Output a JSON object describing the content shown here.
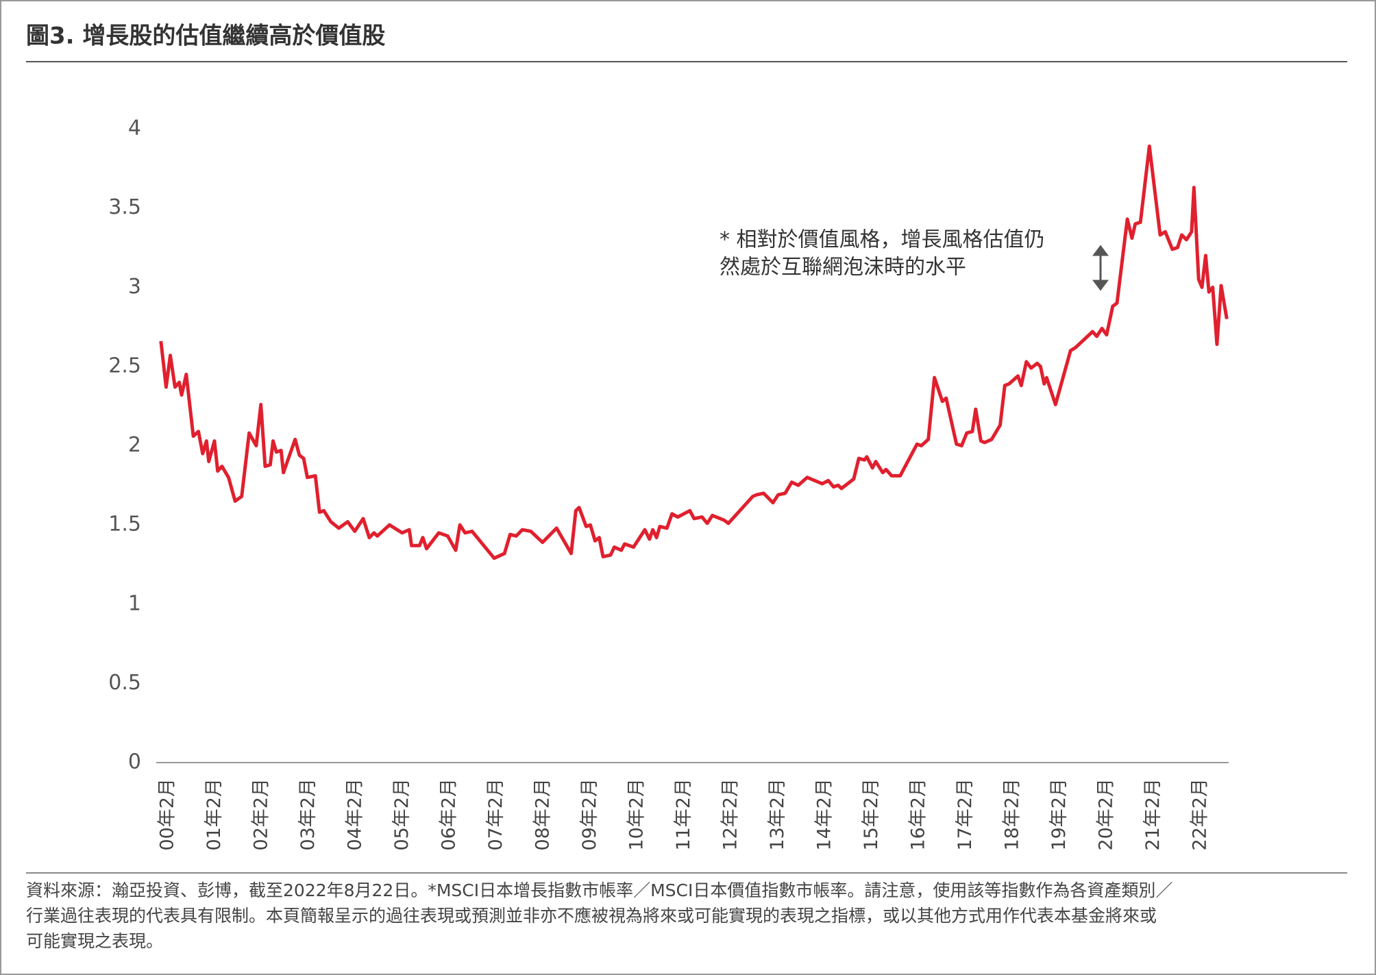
{
  "chart_data": {
    "type": "line",
    "title": "圖3. 增長股的估值繼續高於價值股",
    "annotation": [
      "* 相對於價值風格，增長風格估值仍",
      "然處於互聯網泡沫時的水平"
    ],
    "source": [
      "資料來源：瀚亞投資、彭博，截至2022年8月22日。*MSCI日本增長指數市帳率／MSCI日本價值指數市帳率。請注意，使用該等指數作為各資產類別／",
      "行業過往表現的代表具有限制。本頁簡報呈示的過往表現或預測並非亦不應被視為將來或可能實現的表現之指標，或以其他方式用作代表本基金將來或",
      "可能實現之表現。"
    ],
    "xlim": [
      1999.95,
      2022.8
    ],
    "xticks": [
      {
        "value": 2000.083,
        "label": "00年2月"
      },
      {
        "value": 2001.083,
        "label": "01年2月"
      },
      {
        "value": 2002.083,
        "label": "02年2月"
      },
      {
        "value": 2003.083,
        "label": "03年2月"
      },
      {
        "value": 2004.083,
        "label": "04年2月"
      },
      {
        "value": 2005.083,
        "label": "05年2月"
      },
      {
        "value": 2006.083,
        "label": "06年2月"
      },
      {
        "value": 2007.083,
        "label": "07年2月"
      },
      {
        "value": 2008.083,
        "label": "08年2月"
      },
      {
        "value": 2009.083,
        "label": "09年2月"
      },
      {
        "value": 2010.083,
        "label": "10年2月"
      },
      {
        "value": 2011.083,
        "label": "11年2月"
      },
      {
        "value": 2012.083,
        "label": "12年2月"
      },
      {
        "value": 2013.083,
        "label": "13年2月"
      },
      {
        "value": 2014.083,
        "label": "14年2月"
      },
      {
        "value": 2015.083,
        "label": "15年2月"
      },
      {
        "value": 2016.083,
        "label": "16年2月"
      },
      {
        "value": 2017.083,
        "label": "17年2月"
      },
      {
        "value": 2018.083,
        "label": "18年2月"
      },
      {
        "value": 2019.083,
        "label": "19年2月"
      },
      {
        "value": 2020.083,
        "label": "20年2月"
      },
      {
        "value": 2021.083,
        "label": "21年2月"
      },
      {
        "value": 2022.083,
        "label": "22年2月"
      }
    ],
    "ylim": [
      0,
      4
    ],
    "yticks": [
      0,
      0.5,
      1,
      1.5,
      2,
      2.5,
      3,
      3.5,
      4
    ],
    "grid": false,
    "color": "#e0202e",
    "x": [
      2000.05,
      2000.16,
      2000.25,
      2000.35,
      2000.44,
      2000.49,
      2000.59,
      2000.74,
      2000.85,
      2000.94,
      2001.02,
      2001.07,
      2001.19,
      2001.26,
      2001.35,
      2001.49,
      2001.63,
      2001.77,
      2001.93,
      2002.08,
      2002.18,
      2002.27,
      2002.38,
      2002.44,
      2002.51,
      2002.61,
      2002.66,
      2002.91,
      2003.0,
      2003.09,
      2003.17,
      2003.34,
      2003.43,
      2003.52,
      2003.67,
      2003.84,
      2004.03,
      2004.18,
      2004.36,
      2004.49,
      2004.59,
      2004.66,
      2004.92,
      2005.19,
      2005.34,
      2005.39,
      2005.56,
      2005.63,
      2005.71,
      2005.97,
      2006.16,
      2006.33,
      2006.42,
      2006.53,
      2006.68,
      2007.15,
      2007.37,
      2007.49,
      2007.62,
      2007.75,
      2007.93,
      2008.18,
      2008.48,
      2008.79,
      2008.89,
      2008.96,
      2009.11,
      2009.2,
      2009.3,
      2009.39,
      2009.47,
      2009.63,
      2009.71,
      2009.86,
      2009.93,
      2010.12,
      2010.36,
      2010.46,
      2010.53,
      2010.61,
      2010.68,
      2010.83,
      2010.94,
      2011.06,
      2011.32,
      2011.41,
      2011.58,
      2011.69,
      2011.8,
      2012.05,
      2012.14,
      2012.66,
      2012.74,
      2012.89,
      2013.09,
      2013.2,
      2013.35,
      2013.49,
      2013.63,
      2013.82,
      2014.14,
      2014.27,
      2014.38,
      2014.48,
      2014.55,
      2014.81,
      2014.92,
      2015.04,
      2015.09,
      2015.21,
      2015.28,
      2015.43,
      2015.5,
      2015.62,
      2015.8,
      2016.16,
      2016.25,
      2016.4,
      2016.53,
      2016.7,
      2016.78,
      2017.0,
      2017.11,
      2017.22,
      2017.34,
      2017.41,
      2017.52,
      2017.6,
      2017.75,
      2017.93,
      2018.03,
      2018.12,
      2018.31,
      2018.38,
      2018.49,
      2018.59,
      2018.72,
      2018.79,
      2018.87,
      2018.92,
      2019.11,
      2019.43,
      2019.54,
      2019.9,
      2019.99,
      2020.1,
      2020.2,
      2020.33,
      2020.42,
      2020.64,
      2020.74,
      2020.81,
      2020.92,
      2021.11,
      2021.34,
      2021.45,
      2021.6,
      2021.71,
      2021.8,
      2021.9,
      2022.01,
      2022.06,
      2022.16,
      2022.23,
      2022.31,
      2022.38,
      2022.46,
      2022.55,
      2022.64,
      2022.76
    ],
    "values": [
      2.66,
      2.37,
      2.57,
      2.37,
      2.4,
      2.32,
      2.45,
      2.06,
      2.09,
      1.95,
      2.03,
      1.9,
      2.03,
      1.84,
      1.87,
      1.8,
      1.65,
      1.68,
      2.08,
      2.0,
      2.26,
      1.87,
      1.88,
      2.03,
      1.96,
      1.97,
      1.83,
      2.04,
      1.94,
      1.92,
      1.8,
      1.81,
      1.58,
      1.59,
      1.52,
      1.48,
      1.52,
      1.46,
      1.54,
      1.42,
      1.45,
      1.43,
      1.5,
      1.45,
      1.47,
      1.37,
      1.37,
      1.42,
      1.35,
      1.45,
      1.43,
      1.34,
      1.5,
      1.45,
      1.46,
      1.29,
      1.32,
      1.44,
      1.43,
      1.47,
      1.46,
      1.39,
      1.48,
      1.32,
      1.59,
      1.61,
      1.49,
      1.5,
      1.4,
      1.42,
      1.3,
      1.31,
      1.36,
      1.34,
      1.38,
      1.36,
      1.47,
      1.41,
      1.47,
      1.42,
      1.49,
      1.48,
      1.57,
      1.55,
      1.59,
      1.54,
      1.55,
      1.51,
      1.56,
      1.53,
      1.51,
      1.68,
      1.69,
      1.7,
      1.64,
      1.69,
      1.7,
      1.77,
      1.75,
      1.8,
      1.76,
      1.78,
      1.74,
      1.75,
      1.73,
      1.79,
      1.92,
      1.91,
      1.93,
      1.86,
      1.9,
      1.83,
      1.85,
      1.81,
      1.81,
      2.01,
      2.0,
      2.04,
      2.43,
      2.28,
      2.3,
      2.01,
      2.0,
      2.08,
      2.09,
      2.23,
      2.03,
      2.02,
      2.04,
      2.13,
      2.38,
      2.39,
      2.44,
      2.38,
      2.53,
      2.49,
      2.52,
      2.5,
      2.39,
      2.43,
      2.26,
      2.6,
      2.62,
      2.72,
      2.69,
      2.74,
      2.7,
      2.88,
      2.9,
      3.43,
      3.31,
      3.4,
      3.41,
      3.89,
      3.33,
      3.35,
      3.24,
      3.25,
      3.33,
      3.3,
      3.35,
      3.63,
      3.05,
      3.0,
      3.2,
      2.97,
      3.0,
      2.64,
      3.01,
      2.8
    ]
  }
}
